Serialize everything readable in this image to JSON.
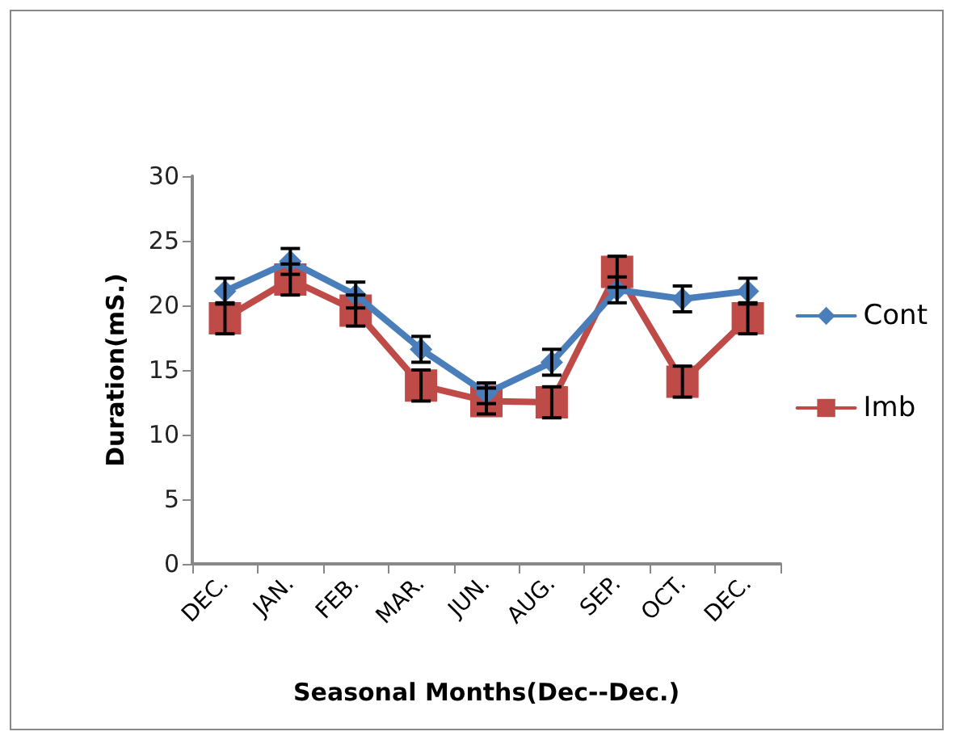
{
  "chart_data": {
    "type": "line",
    "xlabel": "Seasonal Months(Dec--Dec.)",
    "ylabel": "Duration(mS.)",
    "categories": [
      "DEC.",
      "JAN.",
      "FEB.",
      "MAR.",
      "JUN.",
      "AUG.",
      "SEP.",
      "OCT.",
      "DEC."
    ],
    "series": [
      {
        "name": "Cont",
        "color": "#4a7ebb",
        "marker": "diamond",
        "values": [
          21.1,
          23.4,
          20.8,
          16.6,
          13.2,
          15.6,
          21.2,
          20.5,
          21.1
        ],
        "errors": [
          1,
          1,
          1,
          1,
          0.8,
          1,
          1,
          1,
          1
        ]
      },
      {
        "name": "Imb",
        "color": "#be4b48",
        "marker": "square",
        "values": [
          19,
          22,
          19.6,
          13.8,
          12.6,
          12.5,
          22.6,
          14.1,
          19
        ],
        "errors": [
          1.2,
          1.2,
          1.2,
          1.2,
          1,
          1.2,
          1.2,
          1.2,
          1.2
        ]
      }
    ],
    "ylim": [
      0,
      30
    ],
    "yticks": [
      0,
      5,
      10,
      15,
      20,
      25,
      30
    ],
    "grid": false,
    "legend": "right",
    "line_style": "solid"
  }
}
